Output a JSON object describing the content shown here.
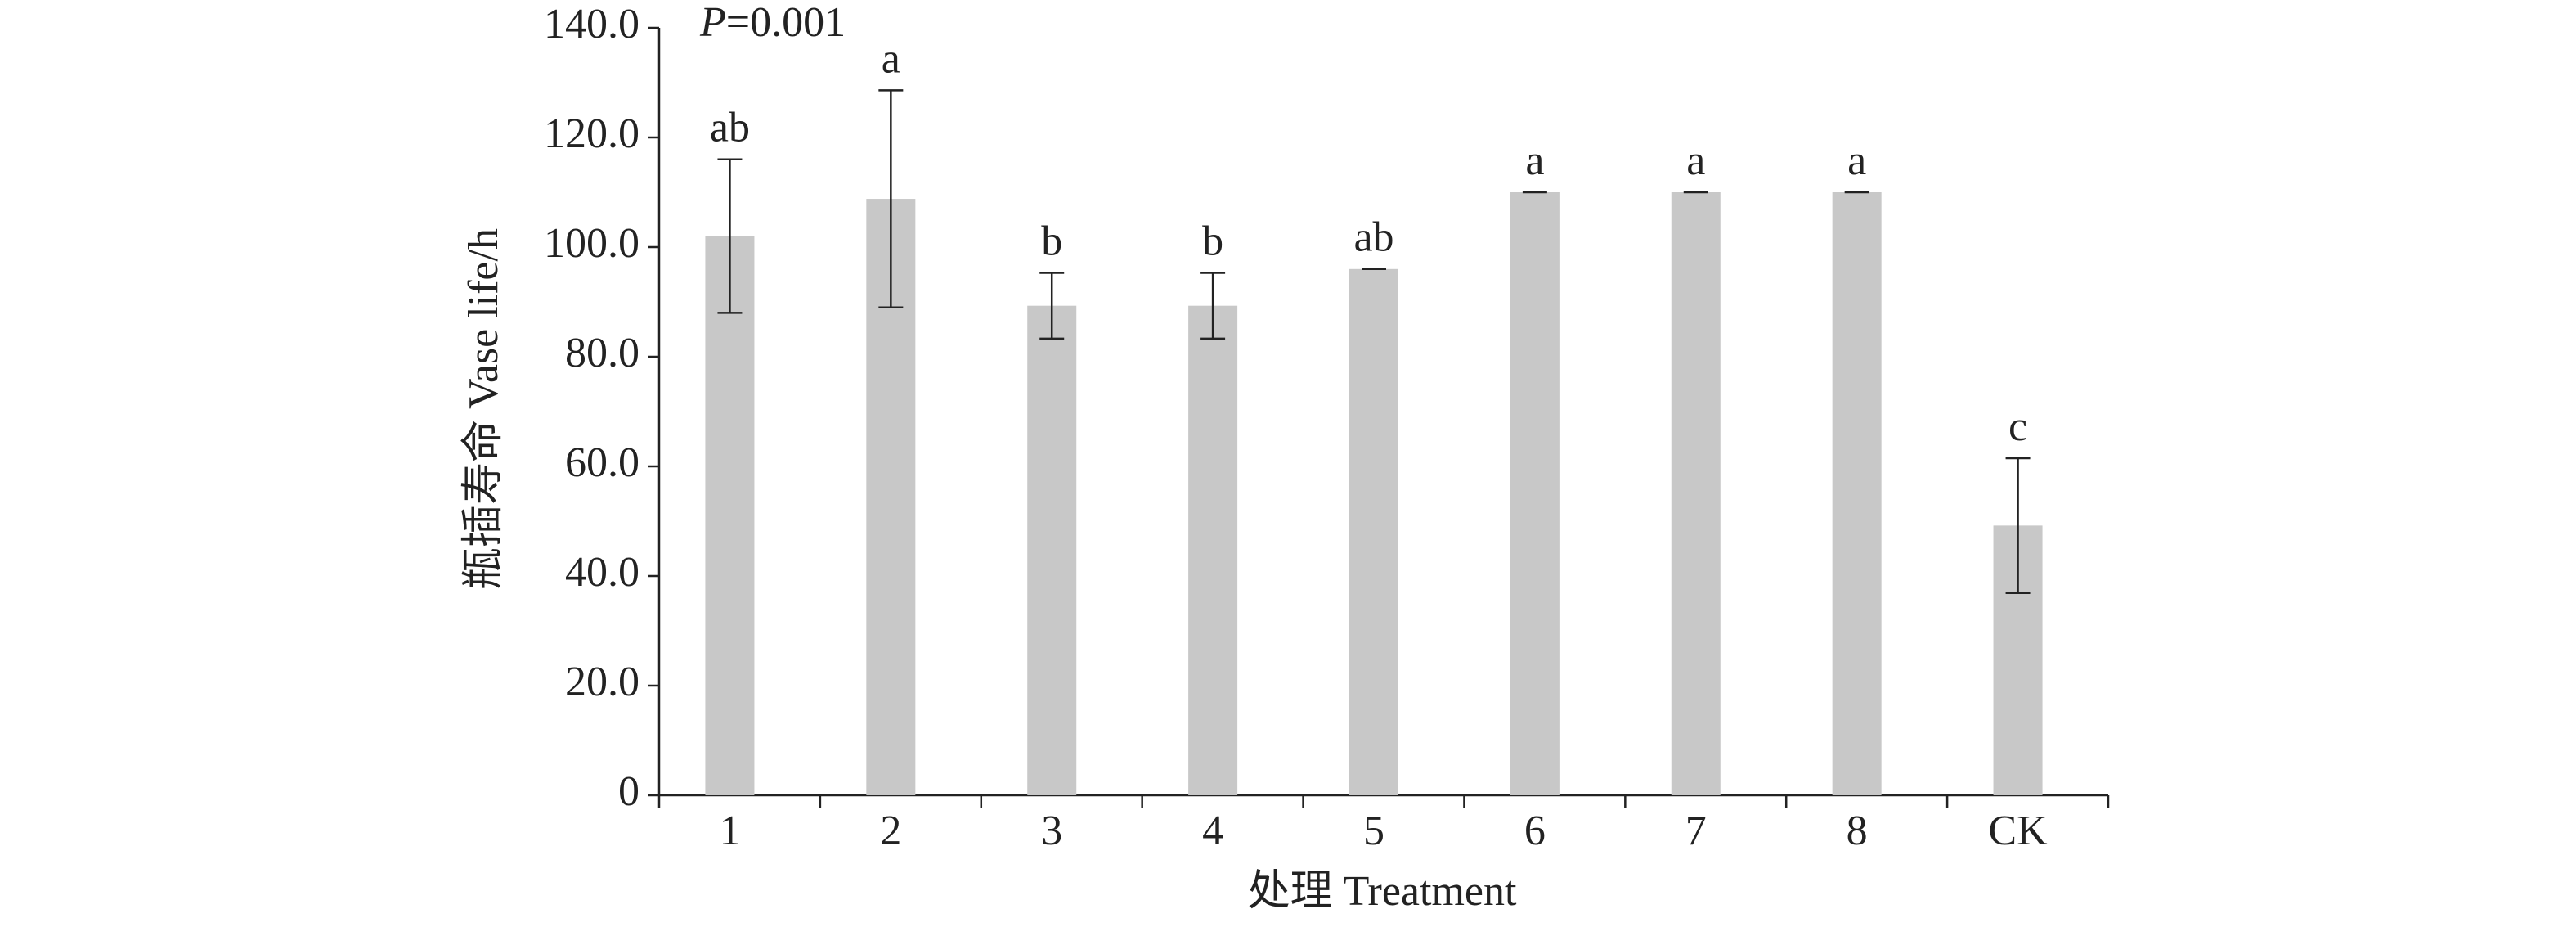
{
  "chart_data": {
    "type": "bar",
    "ylabel": "瓶插寿命 Vase life/h",
    "xlabel": "处理 Treatment",
    "annotation": "P=0.001",
    "categories": [
      "1",
      "2",
      "3",
      "4",
      "5",
      "6",
      "7",
      "8",
      "CK"
    ],
    "values": [
      102,
      108.8,
      89.3,
      89.3,
      96,
      110,
      110,
      110,
      49.2
    ],
    "errors": [
      14,
      19.8,
      6,
      6,
      0,
      0,
      0,
      0,
      12.3
    ],
    "letters": [
      "ab",
      "a",
      "b",
      "b",
      "ab",
      "a",
      "a",
      "a",
      "c"
    ],
    "color": "#c8c8c8",
    "ylim": [
      0,
      140
    ],
    "yticks": [
      0,
      {
        "value": 20,
        "label": "20.0"
      },
      {
        "value": 40,
        "label": "40.0"
      },
      {
        "value": 60,
        "label": "60.0"
      },
      {
        "value": 80,
        "label": "80.0"
      },
      {
        "value": 100,
        "label": "100.0"
      },
      {
        "value": 120,
        "label": "120.0"
      },
      {
        "value": 140,
        "label": "140.0"
      }
    ],
    "grid": false
  }
}
